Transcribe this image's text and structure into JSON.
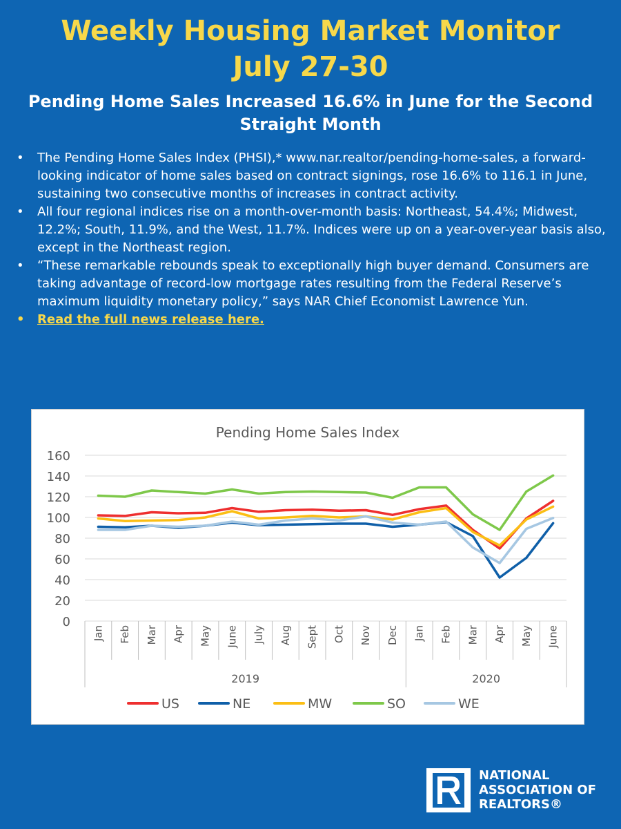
{
  "header": {
    "title_line1": "Weekly Housing Market Monitor",
    "title_line2": "July 27-30",
    "subtitle": "Pending Home Sales Increased 16.6% in June for the Second Straight Month"
  },
  "bullets": [
    "The Pending Home Sales Index (PHSI),* www.nar.realtor/pending-home-sales, a forward-looking indicator of home sales based on contract signings, rose 16.6% to 116.1 in June, sustaining two consecutive months of increases in contract activity.",
    "All four regional indices rise on a month-over-month basis: Northeast, 54.4%; Midwest, 12.2%; South, 11.9%, and the West, 11.7%. Indices were up on a year-over-year basis also, except in the Northeast region.",
    " “These remarkable rebounds speak to exceptionally high buyer demand. Consumers are taking advantage of record-low mortgage rates resulting from the Federal Reserve’s maximum liquidity monetary policy,” says NAR Chief Economist Lawrence Yun."
  ],
  "link_text": "Read the full news release here.",
  "bullet_symbol": "•",
  "chart_data": {
    "type": "line",
    "title": "Pending Home Sales Index",
    "categories": [
      "Jan",
      "Feb",
      "Mar",
      "Apr",
      "May",
      "June",
      "July",
      "Aug",
      "Sept",
      "Oct",
      "Nov",
      "Dec",
      "Jan",
      "Feb",
      "Mar",
      "Apr",
      "May",
      "June"
    ],
    "year_groups": [
      {
        "label": "2019",
        "count": 12
      },
      {
        "label": "2020",
        "count": 6
      }
    ],
    "ylim": [
      0,
      160
    ],
    "yticks": [
      0,
      20,
      40,
      60,
      80,
      100,
      120,
      140,
      160
    ],
    "grid": true,
    "legend_position": "bottom",
    "series": [
      {
        "name": "US",
        "color": "#ee2f2f",
        "values": [
          102,
          101.5,
          105,
          104,
          104.5,
          109,
          105.5,
          107,
          107.5,
          106.5,
          107,
          102.5,
          108,
          111.5,
          88,
          70,
          99,
          116
        ]
      },
      {
        "name": "NE",
        "color": "#0f5fa8",
        "values": [
          91,
          90.5,
          92,
          90,
          92,
          95,
          92.5,
          93,
          93.5,
          94,
          94,
          91,
          93,
          95.5,
          82,
          42,
          61,
          94.5
        ]
      },
      {
        "name": "MW",
        "color": "#fbbe14",
        "values": [
          99,
          96.5,
          97,
          97.5,
          100,
          106,
          99,
          100,
          101.5,
          100,
          101,
          98,
          105,
          109,
          86,
          73,
          98,
          110.5
        ]
      },
      {
        "name": "SO",
        "color": "#7ec84a",
        "values": [
          121,
          120,
          126,
          124.5,
          123,
          127,
          123,
          124.5,
          125,
          124.5,
          124,
          119,
          129,
          129,
          103,
          88,
          125,
          140.5
        ]
      },
      {
        "name": "WE",
        "color": "#a6c7e2",
        "values": [
          88,
          88,
          92,
          91,
          92,
          96,
          93,
          97,
          99,
          97,
          101,
          95,
          93,
          96,
          71,
          56,
          89,
          99.5
        ]
      }
    ]
  },
  "logo": {
    "line1": "NATIONAL",
    "line2": "ASSOCIATION OF",
    "line3": "REALTORS®",
    "brand_color": "#0e65b3"
  }
}
